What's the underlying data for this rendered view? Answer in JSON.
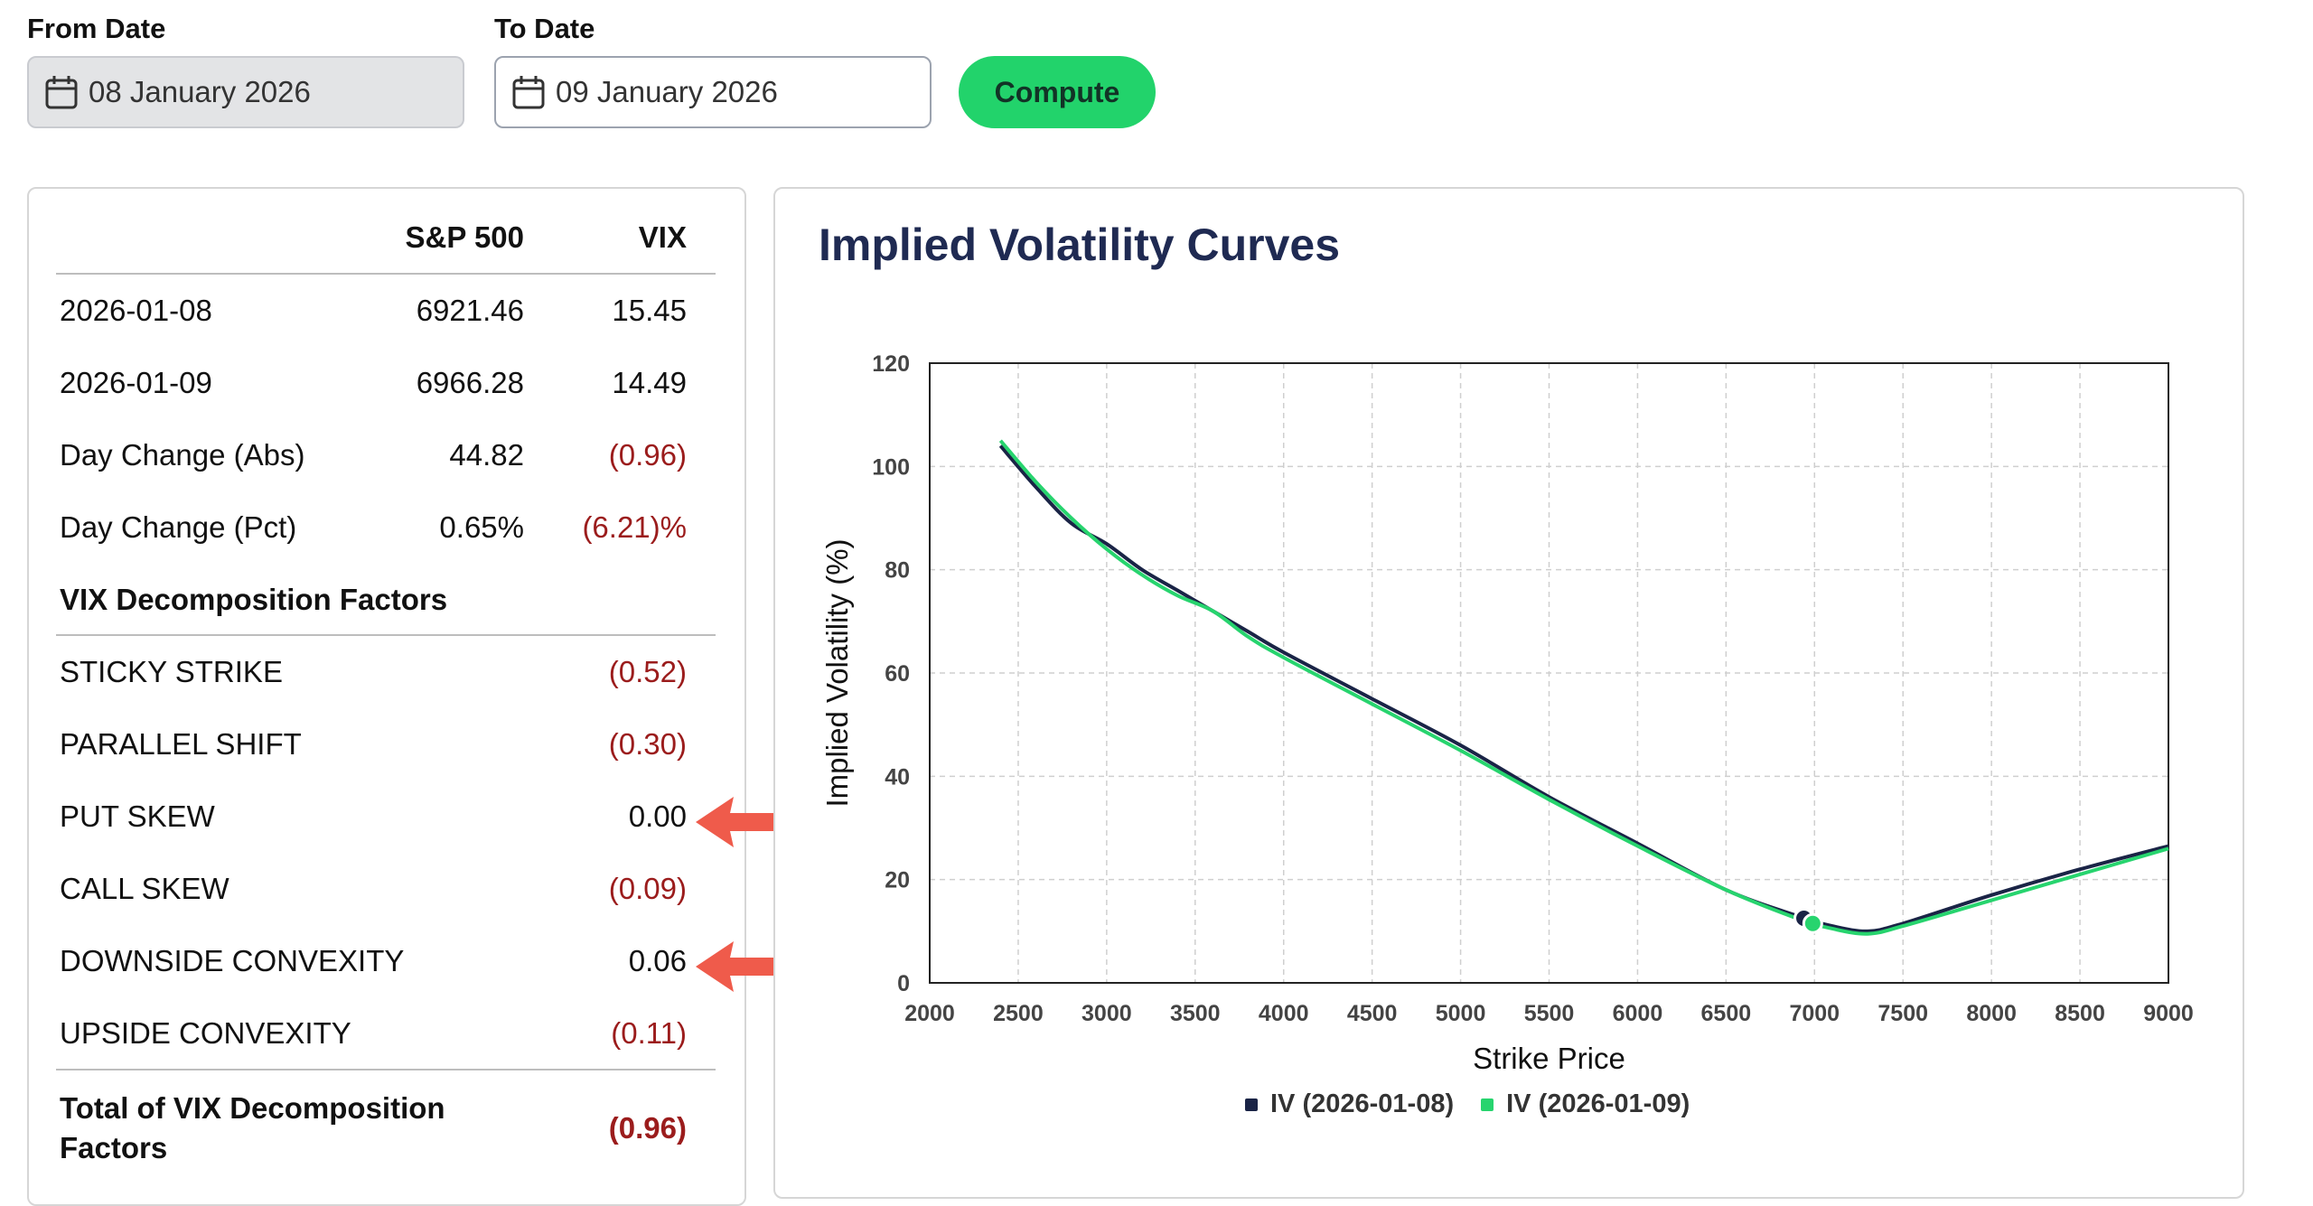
{
  "form": {
    "from_label": "From Date",
    "from_value": "08 January 2026",
    "to_label": "To Date",
    "to_value": "09 January 2026",
    "compute_label": "Compute"
  },
  "table": {
    "header": {
      "col1": "",
      "col2": "S&P 500",
      "col3": "VIX"
    },
    "rows": [
      {
        "label": "2026-01-08",
        "spx": "6921.46",
        "vix": "15.45"
      },
      {
        "label": "2026-01-09",
        "spx": "6966.28",
        "vix": "14.49"
      },
      {
        "label": "Day Change (Abs)",
        "spx": "44.82",
        "vix": "(0.96)"
      },
      {
        "label": "Day Change (Pct)",
        "spx": "0.65%",
        "vix": "(6.21)%"
      }
    ],
    "section_title": "VIX Decomposition Factors",
    "factors": [
      {
        "label": "STICKY STRIKE",
        "value": "(0.52)"
      },
      {
        "label": "PARALLEL SHIFT",
        "value": "(0.30)"
      },
      {
        "label": "PUT SKEW",
        "value": "0.00"
      },
      {
        "label": "CALL SKEW",
        "value": "(0.09)"
      },
      {
        "label": "DOWNSIDE CONVEXITY",
        "value": "0.06"
      },
      {
        "label": "UPSIDE CONVEXITY",
        "value": "(0.11)"
      }
    ],
    "total_label_line1": "Total of VIX Decomposition",
    "total_label_line2": "Factors",
    "total_value": "(0.96)"
  },
  "colors": {
    "accent_green": "#22d36b",
    "negative_red": "#9b1c1c",
    "series_1": "#1a2446",
    "series_2": "#27d46e",
    "annotation_arrow": "#ef5b4b"
  },
  "chart_data": {
    "type": "line",
    "title": "Implied Volatility Curves",
    "xlabel": "Strike Price",
    "ylabel": "Implied Volatility (%)",
    "xlim": [
      2000,
      9000
    ],
    "ylim": [
      0,
      120
    ],
    "x_ticks": [
      2000,
      2500,
      3000,
      3500,
      4000,
      4500,
      5000,
      5500,
      6000,
      6500,
      7000,
      7500,
      8000,
      8500,
      9000
    ],
    "y_ticks": [
      0,
      20,
      40,
      60,
      80,
      100,
      120
    ],
    "grid": true,
    "legend_position": "bottom-center",
    "series": [
      {
        "name": "IV (2026-01-08)",
        "color": "#1a2446",
        "x": [
          2400,
          2600,
          2800,
          3000,
          3200,
          3400,
          3600,
          3800,
          4000,
          4500,
          5000,
          5500,
          6000,
          6500,
          6900,
          7100,
          7300,
          7500,
          8000,
          8500,
          9000
        ],
        "y": [
          104,
          96,
          89,
          85,
          80,
          76,
          72,
          68,
          64,
          55,
          46,
          36,
          27,
          18,
          13,
          11,
          10,
          11.5,
          17,
          22,
          26.5
        ],
        "marker": {
          "x": 6940,
          "y": 12.5
        }
      },
      {
        "name": "IV (2026-01-09)",
        "color": "#27d46e",
        "x": [
          2400,
          2600,
          2800,
          3000,
          3200,
          3400,
          3600,
          3800,
          4000,
          4500,
          5000,
          5500,
          6000,
          6500,
          6900,
          7100,
          7300,
          7500,
          8000,
          8500,
          9000
        ],
        "y": [
          105,
          97,
          90,
          84,
          79,
          75,
          72,
          67,
          63,
          54,
          45,
          35.5,
          26.5,
          18,
          12.5,
          10.5,
          9.5,
          11,
          16,
          21,
          26
        ],
        "marker": {
          "x": 6990,
          "y": 11.5
        }
      }
    ]
  }
}
